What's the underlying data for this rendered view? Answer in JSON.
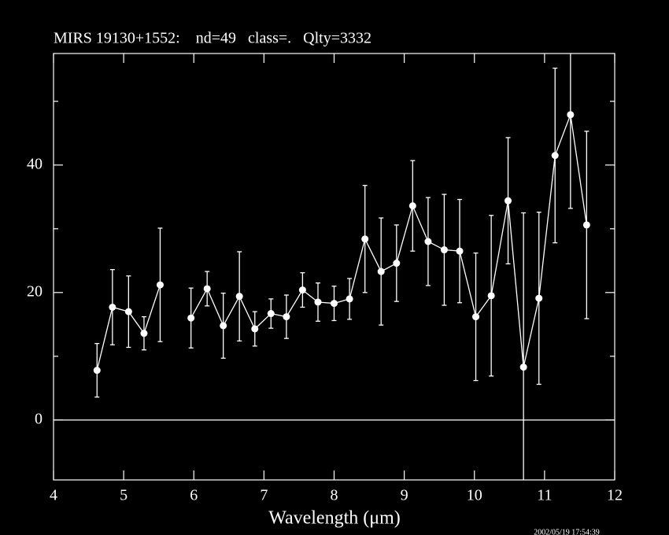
{
  "chart_data": {
    "type": "errorbar-line",
    "title": "MIRS 19130+1552:    nd=49   class=.   Qlty=3332",
    "x_label": "Wavelength (μm)",
    "timestamp": "2002/05/19 17:54:39",
    "xlim": [
      4,
      12
    ],
    "xticks": [
      4,
      5,
      6,
      7,
      8,
      9,
      10,
      11,
      12
    ],
    "ylim": [
      -9.4,
      57.5
    ],
    "yticks": [
      0,
      20,
      40
    ],
    "yminorticks": [
      10,
      30,
      50
    ],
    "zero_line": true,
    "color": "#ffffff",
    "x": [
      4.62,
      4.84,
      5.07,
      5.29,
      5.52,
      5.74,
      5.96,
      6.19,
      6.42,
      6.65,
      6.87,
      7.1,
      7.32,
      7.55,
      7.77,
      8.0,
      8.22,
      8.44,
      8.67,
      8.89,
      9.12,
      9.34,
      9.57,
      9.79,
      10.02,
      10.24,
      10.48,
      10.7,
      10.92,
      11.15,
      11.37,
      11.6
    ],
    "values": [
      7.8,
      17.7,
      17.0,
      13.6,
      21.2,
      null,
      16.0,
      20.6,
      14.8,
      19.4,
      14.3,
      16.7,
      16.2,
      20.4,
      18.5,
      18.3,
      19.0,
      28.4,
      23.3,
      24.6,
      33.6,
      28.0,
      26.7,
      26.5,
      16.2,
      19.5,
      34.4,
      8.3,
      19.1,
      41.5,
      47.9,
      30.6
    ],
    "errors": [
      4.2,
      5.9,
      5.6,
      2.6,
      8.9,
      null,
      4.7,
      2.7,
      5.1,
      7.0,
      2.7,
      2.3,
      3.4,
      2.7,
      3.0,
      2.7,
      3.2,
      8.4,
      8.4,
      6.0,
      7.1,
      6.9,
      8.7,
      8.1,
      10.0,
      12.6,
      9.9,
      24.2,
      13.5,
      13.7,
      14.7,
      14.7
    ]
  }
}
